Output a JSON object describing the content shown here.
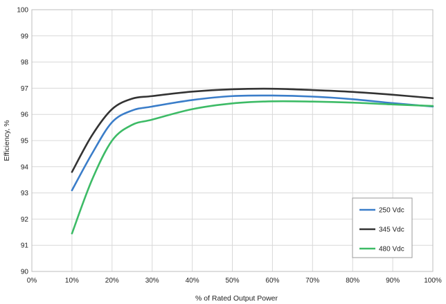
{
  "chart_data": {
    "type": "line",
    "title": "",
    "xlabel": "% of Rated Output Power",
    "ylabel": "Efficiency, %",
    "xlim": [
      0,
      100
    ],
    "ylim": [
      90,
      100
    ],
    "x_ticks": [
      0,
      10,
      20,
      30,
      40,
      50,
      60,
      70,
      80,
      90,
      100
    ],
    "x_tick_labels": [
      "0%",
      "10%",
      "20%",
      "30%",
      "40%",
      "50%",
      "60%",
      "70%",
      "80%",
      "90%",
      "100%"
    ],
    "y_ticks": [
      90,
      91,
      92,
      93,
      94,
      95,
      96,
      97,
      98,
      99,
      100
    ],
    "y_tick_labels": [
      "90",
      "91",
      "92",
      "93",
      "94",
      "95",
      "96",
      "97",
      "98",
      "99",
      "100"
    ],
    "grid": true,
    "legend_position": "bottom-right",
    "series": [
      {
        "name": "250 Vdc",
        "color": "#3a7dc9",
        "x": [
          10,
          15,
          20,
          25,
          30,
          40,
          50,
          60,
          70,
          80,
          90,
          100
        ],
        "y": [
          93.1,
          94.5,
          95.7,
          96.15,
          96.3,
          96.55,
          96.7,
          96.72,
          96.68,
          96.58,
          96.43,
          96.3
        ]
      },
      {
        "name": "345 Vdc",
        "color": "#333333",
        "x": [
          10,
          15,
          20,
          25,
          30,
          40,
          50,
          60,
          70,
          80,
          90,
          100
        ],
        "y": [
          93.8,
          95.2,
          96.2,
          96.6,
          96.7,
          96.87,
          96.96,
          96.98,
          96.93,
          96.86,
          96.75,
          96.62
        ]
      },
      {
        "name": "480 Vdc",
        "color": "#3dbb66",
        "x": [
          10,
          15,
          20,
          25,
          30,
          40,
          50,
          60,
          70,
          80,
          90,
          100
        ],
        "y": [
          91.45,
          93.5,
          95.0,
          95.6,
          95.8,
          96.2,
          96.42,
          96.5,
          96.49,
          96.45,
          96.38,
          96.32
        ]
      }
    ]
  }
}
